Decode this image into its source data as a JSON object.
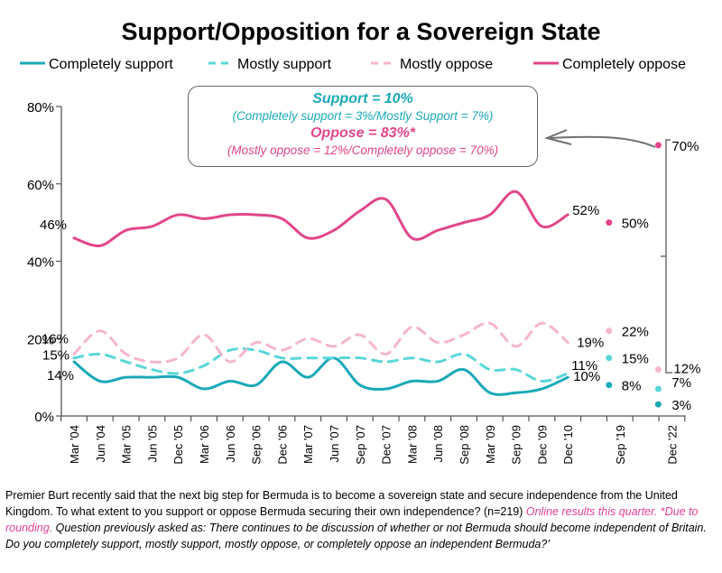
{
  "chart_data": {
    "type": "line",
    "title": "Support/Opposition for a Sovereign State",
    "xlabel": "",
    "ylabel": "",
    "ylim": [
      0,
      80
    ],
    "yticks": [
      "0%",
      "20%",
      "40%",
      "60%",
      "80%"
    ],
    "grid": false,
    "legend_position": "top",
    "categories": [
      "Mar '04",
      "Jun '04",
      "Mar '05",
      "Jun '05",
      "Dec '05",
      "Mar '06",
      "Jun '06",
      "Sep '06",
      "Dec '06",
      "Mar '07",
      "Jun '07",
      "Sep '07",
      "Dec '07",
      "Mar '08",
      "Jun '08",
      "Sep '08",
      "Mar '09",
      "Sep '09",
      "Dec '09",
      "Dec '10",
      "",
      "Sep '19",
      "",
      "Dec '22"
    ],
    "series": [
      {
        "name": "Completely support",
        "style": "solid",
        "color": "#1aa9b8",
        "values": [
          14,
          9,
          10,
          10,
          10,
          7,
          9,
          8,
          14,
          10,
          15,
          8,
          7,
          9,
          9,
          12,
          6,
          6,
          7,
          10,
          null,
          8,
          null,
          3
        ],
        "labels": {
          "0": "14%",
          "19": "10%",
          "21": "8%",
          "23": "3%"
        }
      },
      {
        "name": "Mostly support",
        "style": "dashed",
        "color": "#5ad6d8",
        "values": [
          15,
          16,
          14,
          12,
          11,
          13,
          17,
          17,
          15,
          15,
          15,
          15,
          14,
          15,
          14,
          16,
          12,
          12,
          9,
          11,
          null,
          15,
          null,
          7
        ],
        "labels": {
          "0": "15%",
          "19": "11%",
          "21": "15%",
          "23": "7%"
        }
      },
      {
        "name": "Mostly oppose",
        "style": "dashed",
        "color": "#f5b5cf",
        "values": [
          16,
          22,
          16,
          14,
          15,
          21,
          14,
          19,
          17,
          20,
          18,
          21,
          16,
          23,
          19,
          21,
          24,
          18,
          24,
          19,
          null,
          22,
          null,
          12
        ],
        "labels": {
          "0": "16%",
          "19": "19%",
          "21": "22%",
          "23": "12%"
        }
      },
      {
        "name": "Completely oppose",
        "style": "solid",
        "color": "#e2468a",
        "values": [
          46,
          44,
          48,
          49,
          52,
          51,
          52,
          52,
          51,
          46,
          48,
          53,
          56,
          46,
          48,
          50,
          52,
          58,
          49,
          52,
          null,
          50,
          null,
          70
        ],
        "labels": {
          "0": "46%",
          "19": "52%",
          "21": "50%",
          "23": "70%"
        }
      }
    ],
    "annotation": {
      "support_headline": "Support = 10%",
      "support_detail": "(Completely support = 3%/Mostly Support = 7%)",
      "oppose_headline": "Oppose = 83%*",
      "oppose_detail": "(Mostly oppose = 12%/Completely oppose = 70%)"
    }
  },
  "footnote": {
    "main": "Premier Burt recently said that the next big step for Bermuda is to become a sovereign state and secure independence from the United Kingdom. To what extent to you support or oppose Bermuda securing their own independence? (n=219) ",
    "pink": "Online results this quarter. *Due to rounding.",
    "italic": " Question previously asked as: There continues to be discussion of whether or not Bermuda should become independent of Britain. Do you completely support, mostly support, mostly oppose, or completely oppose an independent Bermuda?’"
  },
  "colors": {
    "support_text": "#1aa9b8",
    "oppose_text": "#e2468a",
    "axis": "#555555"
  }
}
